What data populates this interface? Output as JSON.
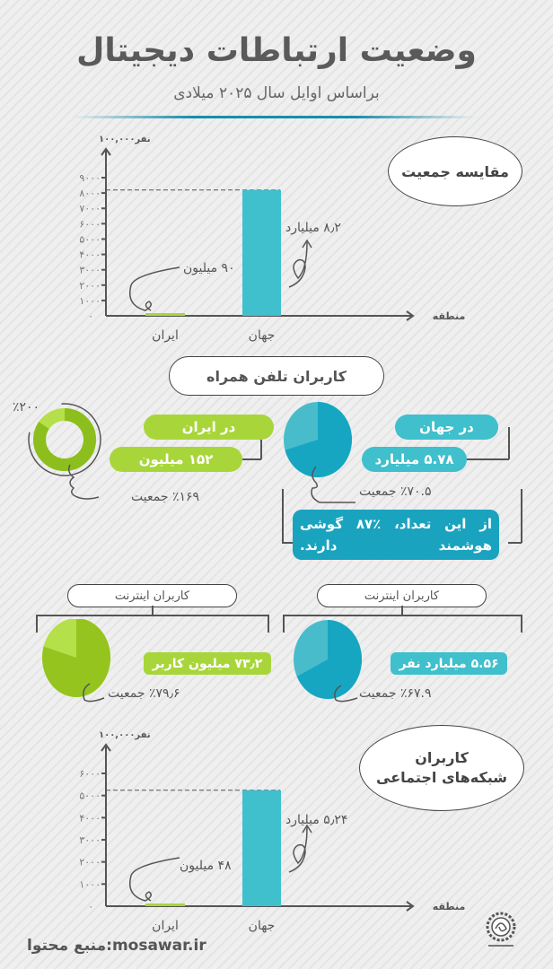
{
  "header": {
    "title": "وضعیت ارتباطات دیجیتال",
    "subtitle": "براساس اوایل سال ۲۰۲۵ میلادی"
  },
  "colors": {
    "iran": "#a8d63a",
    "world": "#40bfcc",
    "world_dark": "#1aa3bf",
    "iran_dark": "#8cbf1e",
    "text": "#555555"
  },
  "population": {
    "badge": "مقایسه جمعیت",
    "world_note": "۸٫۲ میلیارد",
    "iran_note": "۹۰ میلیون"
  },
  "social": {
    "badge_line1": "کاربران",
    "badge_line2": "شبکه‌های اجتماعی",
    "world_note": "۵٫۲۴ میلیارد",
    "iran_note": "۴۸ میلیون"
  },
  "chart_data": [
    {
      "type": "bar",
      "title": "مقایسه جمعیت",
      "ylabel": "۱۰۰,۰۰۰نفر",
      "xlabel": "منطقه",
      "categories": [
        "ایران",
        "جهان"
      ],
      "values": [
        90,
        8200
      ],
      "ylim": [
        0,
        9000
      ],
      "yticks": [
        0,
        1000,
        2000,
        3000,
        4000,
        5000,
        6000,
        7000,
        8000,
        9000
      ],
      "ytick_labels": [
        "۰",
        "۱۰۰۰",
        "۲۰۰۰",
        "۳۰۰۰",
        "۴۰۰۰",
        "۵۰۰۰",
        "۶۰۰۰",
        "۷۰۰۰",
        "۸۰۰۰",
        "۹۰۰۰"
      ],
      "reference_line": 8200,
      "grid": false
    },
    {
      "type": "bar",
      "title": "کاربران شبکه‌های اجتماعی",
      "ylabel": "۱۰۰,۰۰۰نفر",
      "xlabel": "منطقه",
      "categories": [
        "ایران",
        "جهان"
      ],
      "values": [
        48,
        5240
      ],
      "ylim": [
        0,
        6000
      ],
      "yticks": [
        0,
        1000,
        2000,
        3000,
        4000,
        5000,
        6000
      ],
      "ytick_labels": [
        "۰",
        "۱۰۰۰",
        "۲۰۰۰",
        "۳۰۰۰",
        "۴۰۰۰",
        "۵۰۰۰",
        "۶۰۰۰"
      ],
      "reference_line": 5240,
      "grid": false
    }
  ],
  "mobile": {
    "badge": "کاربران تلفن همراه",
    "iran": {
      "label": "در ایران",
      "value": "۱۵۲ میلیون",
      "percent_text": "٪۱۶۹ جمعیت",
      "ring_text": "٪۲۰۰",
      "percent": 169,
      "ring_max": 200
    },
    "world": {
      "label": "در جهان",
      "value": "۵.۷۸ میلیارد",
      "percent_text": "٪۷۰.۵ جمعیت",
      "percent": 70.5
    },
    "smartphone_note": "از این تعداد، ٪۸۷ گوشی هوشمند دارند."
  },
  "internet": {
    "iran": {
      "badge": "کاربران اینترنت",
      "value": "۷۳٫۲ میلیون کاربر",
      "percent_text": "٪۷۹٫۶ جمعیت",
      "percent": 79.6
    },
    "world": {
      "badge": "کاربران اینترنت",
      "value": "۵.۵۶ میلیارد نفر",
      "percent_text": "٪۶۷.۹ جمعیت",
      "percent": 67.9
    }
  },
  "footer": {
    "source": "mosawar.ir:منبع محتوا",
    "logo_text": "mosawar"
  }
}
